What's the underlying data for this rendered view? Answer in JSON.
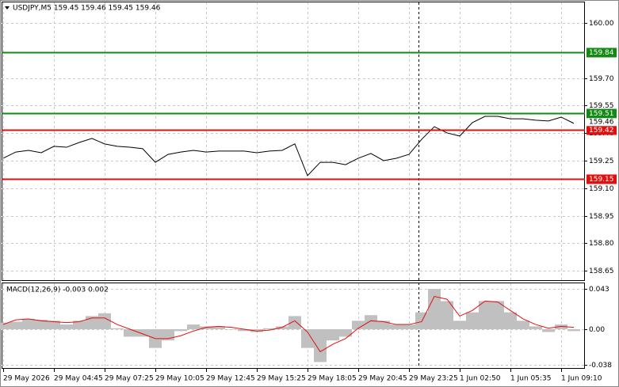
{
  "chart_data": [
    {
      "type": "line",
      "title": "USDJPY,M5 159.45 159.46 159.45 159.46",
      "color": "#000000",
      "values": [
        159.263,
        159.297,
        159.306,
        159.293,
        159.328,
        159.323,
        159.349,
        159.371,
        159.341,
        159.328,
        159.323,
        159.315,
        159.241,
        159.284,
        159.297,
        159.306,
        159.297,
        159.302,
        159.302,
        159.302,
        159.293,
        159.302,
        159.306,
        159.341,
        159.168,
        159.241,
        159.241,
        159.228,
        159.263,
        159.289,
        159.25,
        159.263,
        159.284,
        159.366,
        159.435,
        159.401,
        159.384,
        159.457,
        159.491,
        159.491,
        159.478,
        159.478,
        159.47,
        159.466,
        159.487,
        159.453
      ],
      "ylim": [
        158.595,
        160.116
      ],
      "yticks": [
        {
          "value": 160,
          "label": "160.00"
        },
        {
          "value": 159.7,
          "label": "159.70"
        },
        159.55,
        {
          "value": 159.4,
          "label": "159.40"
        },
        159.25,
        {
          "value": 159.1,
          "label": "159.10"
        },
        158.95,
        {
          "value": 158.8,
          "label": "158.80"
        },
        158.65
      ],
      "levels": [
        {
          "value": 159.84,
          "color": "#138a13"
        },
        {
          "value": 159.51,
          "color": "#138a13"
        },
        {
          "value": 159.42,
          "color": "#e01010"
        },
        {
          "value": 159.15,
          "color": "#e01010"
        }
      ],
      "last_price": 159.46,
      "grid": true
    },
    {
      "type": "macd",
      "title": "MACD(12,26,9) -0.003 0.002",
      "color": "#c0c0c0",
      "signal_color": "#e01010",
      "categories": [
        "29 May 2026",
        null,
        null,
        null,
        "29 May 04:45",
        null,
        null,
        null,
        "29 May 07:25",
        null,
        null,
        null,
        "29 May 10:05",
        null,
        null,
        null,
        "29 May 12:45",
        null,
        null,
        null,
        "29 May 15:25",
        null,
        null,
        null,
        "29 May 18:05",
        null,
        null,
        null,
        "29 May 20:45",
        null,
        null,
        null,
        "29 May 23:25",
        null,
        null,
        null,
        "1 Jun 02:50",
        null,
        null,
        null,
        "1 Jun 05:35",
        null,
        null,
        null,
        "1 Jun 09:10",
        null
      ],
      "values": [
        0.007,
        0.008,
        0.011,
        0.01,
        0.009,
        0.005,
        0.009,
        0.014,
        0.017,
        0.001,
        -0.008,
        -0.008,
        -0.02,
        -0.012,
        -0.002,
        0.005,
        0.003,
        0.003,
        0,
        -0.002,
        -0.003,
        0.001,
        0.003,
        0.014,
        -0.02,
        -0.035,
        -0.012,
        -0.008,
        0.009,
        0.015,
        0.009,
        0.005,
        0.005,
        0.018,
        0.043,
        0.03,
        0.009,
        0.018,
        0.03,
        0.03,
        0.018,
        0.009,
        0.003,
        -0.003,
        0.005,
        -0.002
      ],
      "signal_values": [
        0.005,
        0.01,
        0.011,
        0.009,
        0.008,
        0.007,
        0.008,
        0.012,
        0.012,
        0.005,
        0,
        -0.005,
        -0.01,
        -0.01,
        -0.007,
        -0.002,
        0.002,
        0.003,
        0.002,
        0,
        -0.002,
        -0.001,
        0.002,
        0.009,
        -0.003,
        -0.024,
        -0.016,
        -0.01,
        0.001,
        0.009,
        0.008,
        0.005,
        0.005,
        0.008,
        0.035,
        0.032,
        0.014,
        0.02,
        0.03,
        0.029,
        0.02,
        0.011,
        0.005,
        0.001,
        0.003,
        0.002
      ],
      "ylim": [
        -0.0414,
        0.0498
      ],
      "yticks": [
        0.043,
        {
          "value": 0,
          "label": "0.00"
        },
        -0.038
      ]
    }
  ]
}
